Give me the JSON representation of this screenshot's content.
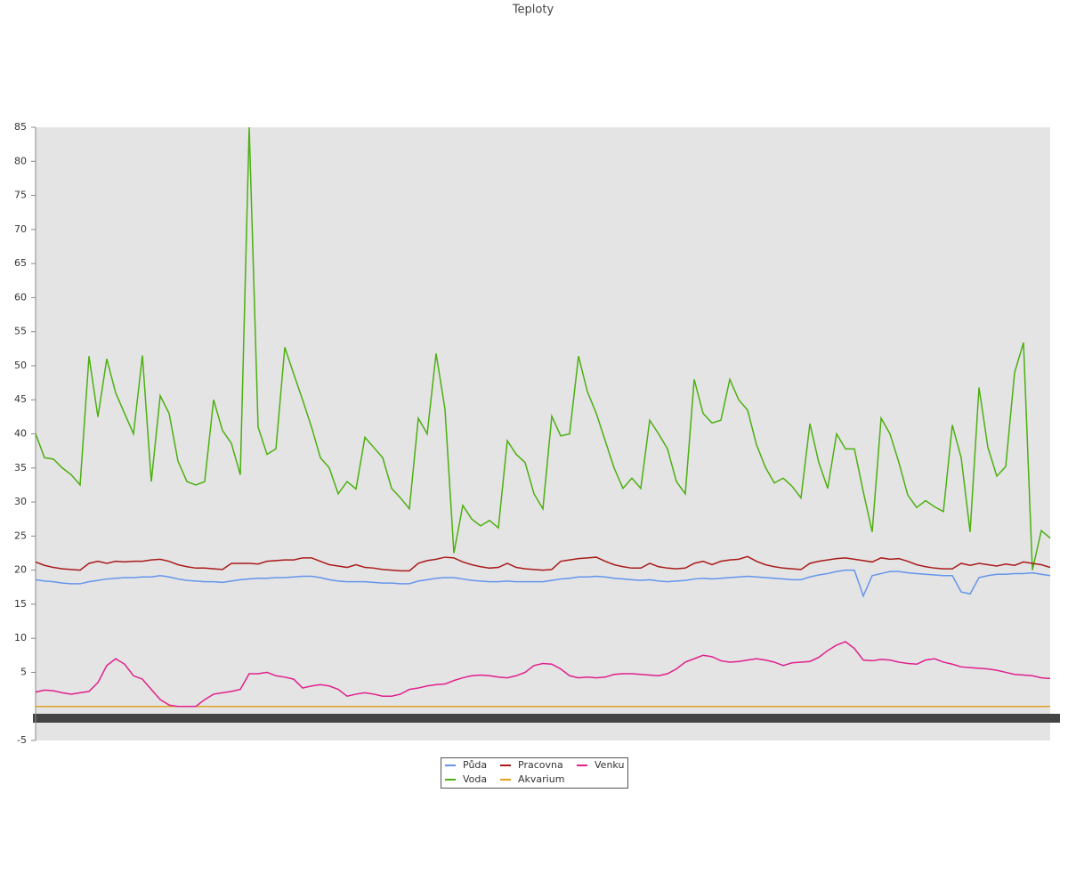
{
  "chart_data": {
    "type": "line",
    "title": "Teploty",
    "categories": [
      null,
      null,
      null,
      null,
      null,
      null,
      null,
      null,
      null,
      null,
      null,
      null,
      null,
      null,
      null,
      null,
      null,
      null,
      null,
      null,
      null,
      null,
      null,
      null,
      null,
      null,
      null,
      null,
      null,
      null,
      null,
      null,
      null,
      null,
      null,
      null,
      null,
      null,
      null,
      null,
      null,
      null,
      null,
      null,
      null,
      null,
      null,
      null,
      null,
      null,
      null,
      null,
      null,
      null,
      null,
      null,
      null,
      null,
      null,
      null,
      null,
      null,
      null,
      null,
      null,
      null,
      null,
      null,
      null,
      null,
      null,
      null,
      null,
      null,
      null,
      null,
      null,
      null,
      null,
      null,
      null,
      null,
      null,
      null,
      null,
      null,
      null,
      null,
      null,
      null,
      null,
      null,
      null,
      null,
      null,
      null,
      null,
      null,
      null,
      null,
      null,
      null,
      null,
      null,
      null,
      null,
      null,
      null,
      null,
      null,
      null,
      null,
      null,
      null,
      null
    ],
    "ylim": [
      -5,
      85
    ],
    "yticks": [
      -5,
      5,
      10,
      15,
      20,
      25,
      30,
      35,
      40,
      45,
      50,
      55,
      60,
      65,
      70,
      75,
      80,
      85
    ],
    "series": [
      {
        "name": "Půda",
        "color": "#6495ed",
        "values": [
          18.6,
          18.4,
          18.3,
          18.1,
          18,
          18,
          18.3,
          18.5,
          18.7,
          18.8,
          18.9,
          18.9,
          19,
          19,
          19.2,
          19,
          18.7,
          18.5,
          18.4,
          18.3,
          18.3,
          18.2,
          18.4,
          18.6,
          18.7,
          18.8,
          18.8,
          18.9,
          18.9,
          19,
          19.1,
          19.1,
          18.9,
          18.6,
          18.4,
          18.3,
          18.3,
          18.3,
          18.2,
          18.1,
          18.1,
          18,
          18,
          18.4,
          18.6,
          18.8,
          18.9,
          18.9,
          18.7,
          18.5,
          18.4,
          18.3,
          18.3,
          18.4,
          18.3,
          18.3,
          18.3,
          18.3,
          18.5,
          18.7,
          18.8,
          19,
          19,
          19.1,
          19,
          18.8,
          18.7,
          18.6,
          18.5,
          18.6,
          18.4,
          18.3,
          18.4,
          18.5,
          18.7,
          18.8,
          18.7,
          18.8,
          18.9,
          19,
          19.1,
          19,
          18.9,
          18.8,
          18.7,
          18.6,
          18.6,
          19,
          19.3,
          19.5,
          19.8,
          20,
          20,
          16.2,
          19.2,
          19.5,
          19.8,
          19.8,
          19.6,
          19.5,
          19.4,
          19.3,
          19.2,
          19.2,
          16.8,
          16.5,
          18.9,
          19.2,
          19.4,
          19.4,
          19.5,
          19.5,
          19.6,
          19.4,
          19.2
        ]
      },
      {
        "name": "Voda",
        "color": "#4cb010",
        "values": [
          40,
          36.5,
          36.3,
          35,
          34,
          32.5,
          51.4,
          42.5,
          51,
          46,
          43,
          40,
          51.5,
          33,
          45.6,
          43,
          36,
          33,
          32.5,
          33,
          45,
          40.5,
          38.6,
          34,
          85,
          41,
          37,
          37.8,
          52.7,
          48.8,
          45,
          41,
          36.5,
          35,
          31.2,
          33,
          31.9,
          39.5,
          38,
          36.5,
          32,
          30.6,
          29,
          42.3,
          40,
          51.8,
          43.6,
          22.5,
          29.5,
          27.5,
          26.5,
          27.3,
          26.2,
          39,
          37,
          35.8,
          31.2,
          29,
          42.6,
          39.7,
          40,
          51.4,
          46.2,
          43,
          39,
          35,
          32,
          33.5,
          32,
          42,
          40,
          37.8,
          33,
          31.2,
          48,
          43,
          41.6,
          42,
          48,
          45,
          43.5,
          38.4,
          35.1,
          32.8,
          33.5,
          32.3,
          30.6,
          41.5,
          35.8,
          32,
          40,
          37.8,
          37.8,
          31.5,
          25.6,
          42.3,
          40,
          35.8,
          31,
          29.2,
          30.2,
          29.3,
          28.6,
          41.3,
          36.5,
          25.6,
          46.8,
          38,
          33.8,
          35.2,
          49,
          53.4,
          20,
          25.8,
          24.7
        ]
      },
      {
        "name": "Pracovna",
        "color": "#aa1a1a",
        "values": [
          21.2,
          20.7,
          20.4,
          20.2,
          20.1,
          20,
          21,
          21.3,
          21,
          21.3,
          21.2,
          21.3,
          21.3,
          21.5,
          21.6,
          21.3,
          20.8,
          20.5,
          20.3,
          20.3,
          20.2,
          20.1,
          21,
          21,
          21,
          20.9,
          21.3,
          21.4,
          21.5,
          21.5,
          21.8,
          21.8,
          21.3,
          20.8,
          20.6,
          20.4,
          20.8,
          20.4,
          20.3,
          20.1,
          20,
          19.9,
          19.9,
          21,
          21.4,
          21.6,
          21.9,
          21.8,
          21.2,
          20.8,
          20.5,
          20.3,
          20.4,
          21,
          20.4,
          20.2,
          20.1,
          20,
          20.1,
          21.3,
          21.5,
          21.7,
          21.8,
          21.9,
          21.3,
          20.8,
          20.5,
          20.3,
          20.3,
          21,
          20.5,
          20.3,
          20.2,
          20.3,
          21,
          21.3,
          20.8,
          21.3,
          21.5,
          21.6,
          22,
          21.3,
          20.8,
          20.5,
          20.3,
          20.2,
          20.1,
          21,
          21.3,
          21.5,
          21.7,
          21.8,
          21.6,
          21.4,
          21.2,
          21.8,
          21.6,
          21.7,
          21.3,
          20.8,
          20.5,
          20.3,
          20.2,
          20.2,
          21,
          20.7,
          21,
          20.8,
          20.6,
          20.9,
          20.7,
          21.2,
          21,
          20.8,
          20.4
        ]
      },
      {
        "name": "Akvarium",
        "color": "#e0a020",
        "values": [
          0,
          0,
          0,
          0,
          0,
          0,
          0,
          0,
          0,
          0,
          0,
          0,
          0,
          0,
          0,
          0,
          0,
          0,
          0,
          0,
          0,
          0,
          0,
          0,
          0,
          0,
          0,
          0,
          0,
          0,
          0,
          0,
          0,
          0,
          0,
          0,
          0,
          0,
          0,
          0,
          0,
          0,
          0,
          0,
          0,
          0,
          0,
          0,
          0,
          0,
          0,
          0,
          0,
          0,
          0,
          0,
          0,
          0,
          0,
          0,
          0,
          0,
          0,
          0,
          0,
          0,
          0,
          0,
          0,
          0,
          0,
          0,
          0,
          0,
          0,
          0,
          0,
          0,
          0,
          0,
          0,
          0,
          0,
          0,
          0,
          0,
          0,
          0,
          0,
          0,
          0,
          0,
          0,
          0,
          0,
          0,
          0,
          0,
          0,
          0,
          0,
          0,
          0,
          0,
          0,
          0,
          0,
          0,
          0,
          0,
          0,
          0,
          0,
          0,
          0
        ]
      },
      {
        "name": "Venku",
        "color": "#e0208c",
        "values": [
          2.1,
          2.4,
          2.3,
          2,
          1.8,
          2,
          2.2,
          3.5,
          6,
          7,
          6.2,
          4.5,
          4,
          2.5,
          1,
          0.2,
          0,
          0,
          0,
          1,
          1.8,
          2,
          2.2,
          2.5,
          4.8,
          4.8,
          5,
          4.5,
          4.3,
          4,
          2.7,
          3,
          3.2,
          3,
          2.5,
          1.5,
          1.8,
          2,
          1.8,
          1.5,
          1.5,
          1.8,
          2.5,
          2.7,
          3,
          3.2,
          3.3,
          3.8,
          4.2,
          4.5,
          4.6,
          4.5,
          4.3,
          4.2,
          4.5,
          5,
          6,
          6.3,
          6.2,
          5.5,
          4.5,
          4.2,
          4.3,
          4.2,
          4.3,
          4.7,
          4.8,
          4.8,
          4.7,
          4.6,
          4.5,
          4.8,
          5.5,
          6.5,
          7,
          7.5,
          7.3,
          6.7,
          6.5,
          6.6,
          6.8,
          7,
          6.8,
          6.5,
          6,
          6.4,
          6.5,
          6.6,
          7.2,
          8.2,
          9,
          9.5,
          8.5,
          6.8,
          6.7,
          6.9,
          6.8,
          6.5,
          6.3,
          6.2,
          6.8,
          7,
          6.5,
          6.2,
          5.8,
          5.7,
          5.6,
          5.5,
          5.3,
          5,
          4.7,
          4.6,
          4.5,
          4.2,
          4.1
        ]
      }
    ]
  }
}
